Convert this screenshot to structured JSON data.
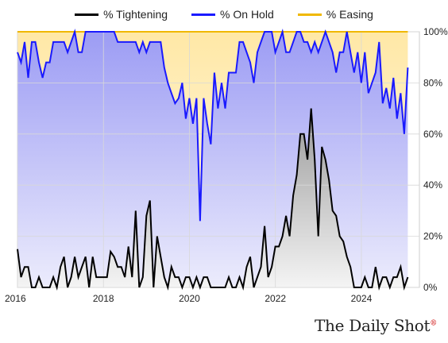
{
  "legend": [
    {
      "name": "% Tightening",
      "color": "#000000"
    },
    {
      "name": "% On Hold",
      "color": "#1a1aff"
    },
    {
      "name": "% Easing",
      "color": "#f0b800"
    }
  ],
  "brand": "The Daily Shot",
  "brand_mark": "®",
  "chart_data": {
    "type": "area",
    "x_start": 2016.0,
    "x_step": 0.0833,
    "xlim": [
      2016,
      2025.35
    ],
    "ylim": [
      0,
      100
    ],
    "x_ticks": [
      2016,
      2018,
      2020,
      2022,
      2024
    ],
    "x_tick_labels": [
      "2016",
      "2018",
      "2020",
      "2022",
      "2024"
    ],
    "y_ticks": [
      0,
      20,
      40,
      60,
      80,
      100
    ],
    "y_tick_labels": [
      "0%",
      "20%",
      "40%",
      "60%",
      "80%",
      "100%"
    ],
    "y_axis_side": "right",
    "grid": true,
    "stacked": true,
    "series": [
      {
        "name": "% Tightening",
        "color": "#000000",
        "values": [
          15,
          4,
          8,
          8,
          0,
          0,
          4,
          0,
          0,
          0,
          4,
          0,
          8,
          12,
          0,
          4,
          12,
          4,
          8,
          12,
          0,
          12,
          4,
          4,
          4,
          4,
          14,
          12,
          8,
          8,
          4,
          16,
          4,
          30,
          0,
          4,
          28,
          34,
          0,
          20,
          12,
          4,
          0,
          8,
          4,
          4,
          0,
          4,
          4,
          0,
          4,
          0,
          4,
          4,
          0,
          0,
          0,
          0,
          0,
          4,
          0,
          0,
          4,
          0,
          8,
          12,
          0,
          4,
          8,
          24,
          4,
          8,
          16,
          16,
          20,
          28,
          20,
          36,
          44,
          60,
          60,
          50,
          70,
          50,
          20,
          55,
          50,
          42,
          30,
          28,
          20,
          18,
          12,
          8,
          0,
          0,
          0,
          4,
          0,
          0,
          8,
          0,
          4,
          4,
          0,
          4,
          4,
          8,
          0,
          4
        ]
      },
      {
        "name": "% On Hold",
        "color": "#1a1aff",
        "values": [
          92,
          88,
          96,
          82,
          96,
          96,
          88,
          82,
          88,
          88,
          96,
          96,
          96,
          96,
          92,
          96,
          100,
          92,
          92,
          100,
          100,
          100,
          100,
          100,
          100,
          100,
          100,
          100,
          96,
          96,
          96,
          96,
          96,
          96,
          92,
          96,
          92,
          96,
          96,
          96,
          96,
          86,
          80,
          76,
          72,
          74,
          80,
          66,
          74,
          64,
          74,
          26,
          74,
          64,
          56,
          84,
          70,
          80,
          70,
          84,
          84,
          84,
          96,
          96,
          92,
          88,
          80,
          92,
          96,
          100,
          100,
          100,
          92,
          96,
          100,
          92,
          92,
          96,
          100,
          100,
          96,
          96,
          92,
          96,
          92,
          96,
          100,
          96,
          92,
          84,
          92,
          92,
          100,
          92,
          84,
          92,
          80,
          92,
          76,
          80,
          84,
          96,
          72,
          78,
          70,
          82,
          66,
          76,
          60,
          86
        ]
      },
      {
        "name": "% Easing",
        "color": "#f0b800",
        "values": [
          100,
          100,
          100,
          100,
          100,
          100,
          100,
          100,
          100,
          100,
          100,
          100,
          100,
          100,
          100,
          100,
          100,
          100,
          100,
          100,
          100,
          100,
          100,
          100,
          100,
          100,
          100,
          100,
          100,
          100,
          100,
          100,
          100,
          100,
          100,
          100,
          100,
          100,
          100,
          100,
          100,
          100,
          100,
          100,
          100,
          100,
          100,
          100,
          100,
          100,
          100,
          100,
          100,
          100,
          100,
          100,
          100,
          100,
          100,
          100,
          100,
          100,
          100,
          100,
          100,
          100,
          100,
          100,
          100,
          100,
          100,
          100,
          100,
          100,
          100,
          100,
          100,
          100,
          100,
          100,
          100,
          100,
          100,
          100,
          100,
          100,
          100,
          100,
          100,
          100,
          100,
          100,
          100,
          100,
          100,
          100,
          100,
          100,
          100,
          100,
          100,
          100,
          100,
          100,
          100,
          100,
          100,
          100,
          100,
          100
        ]
      }
    ]
  }
}
